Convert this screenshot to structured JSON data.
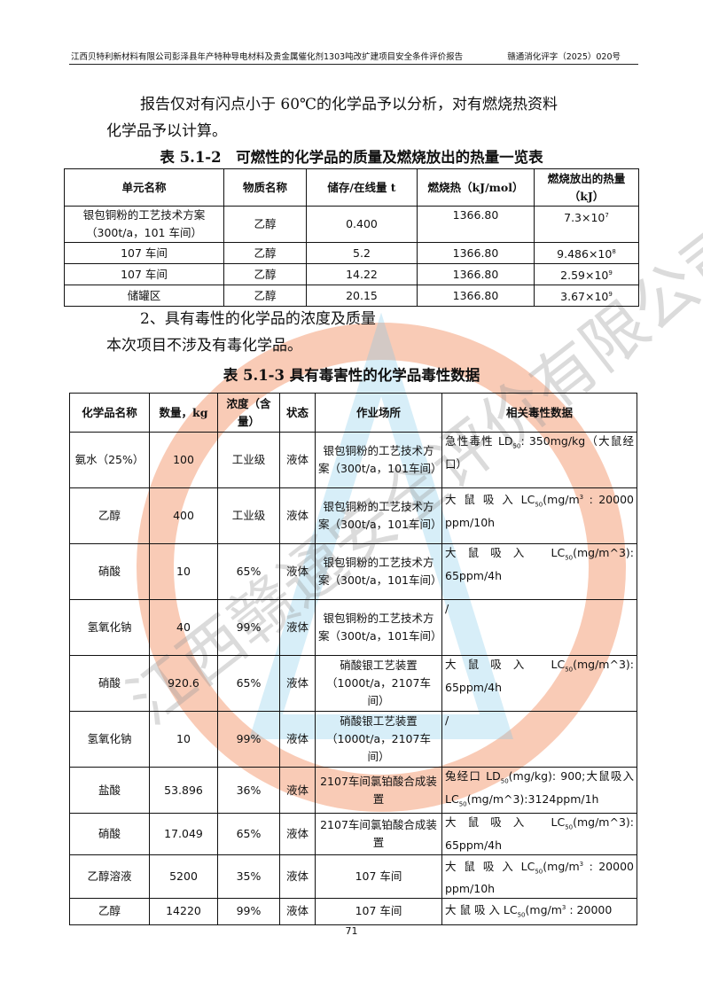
{
  "header": {
    "left": "江西贝特利新材料有限公司彭泽县年产特种导电材料及贵金属催化剂1303吨改扩建项目安全条件评价报告",
    "right": "赣通消化评字（2025）020号"
  },
  "intro": {
    "line1": "报告仅对有闪点小于 60℃的化学品予以分析，对有燃烧热资料",
    "line2": "化学品予以计算。"
  },
  "table1": {
    "caption": "表 5.1-2　可燃性的化学品的质量及燃烧放出的热量一览表",
    "headers": [
      "单元名称",
      "物质名称",
      "储存/在线量 t",
      "燃烧热（kJ/mol）",
      "燃烧放出的热量（kJ）"
    ],
    "rows": [
      {
        "unit": "银包铜粉的工艺技术方案（300t/a，101 车间）",
        "substance": "乙醇",
        "amount": "0.400",
        "heat": "1366.80",
        "q_base": "7.3×10",
        "q_exp": "7"
      },
      {
        "unit": "107 车间",
        "substance": "乙醇",
        "amount": "5.2",
        "heat": "1366.80",
        "q_base": "9.486×10",
        "q_exp": "8"
      },
      {
        "unit": "107 车间",
        "substance": "乙醇",
        "amount": "14.22",
        "heat": "1366.80",
        "q_base": "2.59×10",
        "q_exp": "9"
      },
      {
        "unit": "储罐区",
        "substance": "乙醇",
        "amount": "20.15",
        "heat": "1366.80",
        "q_base": "3.67×10",
        "q_exp": "9"
      }
    ]
  },
  "section2": {
    "title": "2、具有毒性的化学品的浓度及质量",
    "text": "本次项目不涉及有毒化学品。"
  },
  "table2": {
    "caption": "表 5.1-3 具有毒害性的化学品毒性数据",
    "headers": [
      "化学品名称",
      "数量，kg",
      "浓度（含量）",
      "状态",
      "作业场所",
      "相关毒性数据"
    ],
    "rows": [
      {
        "name": "氨水（25%）",
        "qty": "100",
        "conc": "工业级",
        "state": "液体",
        "place": "银包铜粉的工艺技术方案（300t/a，101车间）",
        "tox": [
          {
            "t": "急性毒性 LD"
          },
          {
            "sub": "50"
          },
          {
            "t": ": 350mg/kg（大鼠经口）"
          }
        ]
      },
      {
        "name": "乙醇",
        "qty": "400",
        "conc": "工业级",
        "state": "液体",
        "place": "银包铜粉的工艺技术方案（300t/a，101车间）",
        "tox": [
          {
            "t": "大 鼠 吸 入 LC"
          },
          {
            "sub": "50"
          },
          {
            "t": "(mg/m"
          },
          {
            "sup": "3"
          },
          {
            "t": " : 20000 ppm/10h"
          }
        ]
      },
      {
        "name": "硝酸",
        "qty": "10",
        "conc": "65%",
        "state": "液体",
        "place": "银包铜粉的工艺技术方案（300t/a，101车间）",
        "tox": [
          {
            "t": "大鼠吸入 LC"
          },
          {
            "sub": "50"
          },
          {
            "t": "(mg/m^3): 65ppm/4h"
          }
        ]
      },
      {
        "name": "氢氧化钠",
        "qty": "40",
        "conc": "99%",
        "state": "液体",
        "place": "银包铜粉的工艺技术方案（300t/a，101车间）",
        "tox": [
          {
            "t": "/"
          }
        ]
      },
      {
        "name": "硝酸",
        "qty": "920.6",
        "conc": "65%",
        "state": "液体",
        "place": "硝酸银工艺装置（1000t/a，2107车间）",
        "tox": [
          {
            "t": "大鼠吸入 LC"
          },
          {
            "sub": "50"
          },
          {
            "t": "(mg/m^3): 65ppm/4h"
          }
        ]
      },
      {
        "name": "氢氧化钠",
        "qty": "10",
        "conc": "99%",
        "state": "液体",
        "place": "硝酸银工艺装置（1000t/a，2107车间）",
        "tox": [
          {
            "t": "/"
          }
        ]
      },
      {
        "name": "盐酸",
        "qty": "53.896",
        "conc": "36%",
        "state": "液体",
        "place": "2107车间氯铂酸合成装置",
        "tox": [
          {
            "t": "兔经口 LD"
          },
          {
            "sub": "50"
          },
          {
            "t": "(mg/kg): 900;大鼠吸入 LC"
          },
          {
            "sub": "50"
          },
          {
            "t": "(mg/m^3):3124ppm/1h"
          }
        ]
      },
      {
        "name": "硝酸",
        "qty": "17.049",
        "conc": "65%",
        "state": "液体",
        "place": "2107车间氯铂酸合成装置",
        "tox": [
          {
            "t": "大鼠吸入 LC"
          },
          {
            "sub": "50"
          },
          {
            "t": "(mg/m^3): 65ppm/4h"
          }
        ]
      },
      {
        "name": "乙醇溶液",
        "qty": "5200",
        "conc": "35%",
        "state": "液体",
        "place": "107 车间",
        "tox": [
          {
            "t": "大 鼠 吸 入 LC"
          },
          {
            "sub": "50"
          },
          {
            "t": "(mg/m"
          },
          {
            "sup": "3"
          },
          {
            "t": " : 20000 ppm/10h"
          }
        ]
      },
      {
        "name": "乙醇",
        "qty": "14220",
        "conc": "99%",
        "state": "液体",
        "place": "107 车间",
        "tox": [
          {
            "t": "大 鼠 吸 入 LC"
          },
          {
            "sub": "50"
          },
          {
            "t": "(mg/m"
          },
          {
            "sup": "3"
          },
          {
            "t": " : 20000"
          }
        ]
      }
    ]
  },
  "page_number": "71",
  "watermark": {
    "text": "江西赣通安全评价有限公司",
    "colors": {
      "ring": "#f4a07a",
      "text": "#9a9a9a",
      "accent": "#7cc7e8"
    }
  }
}
